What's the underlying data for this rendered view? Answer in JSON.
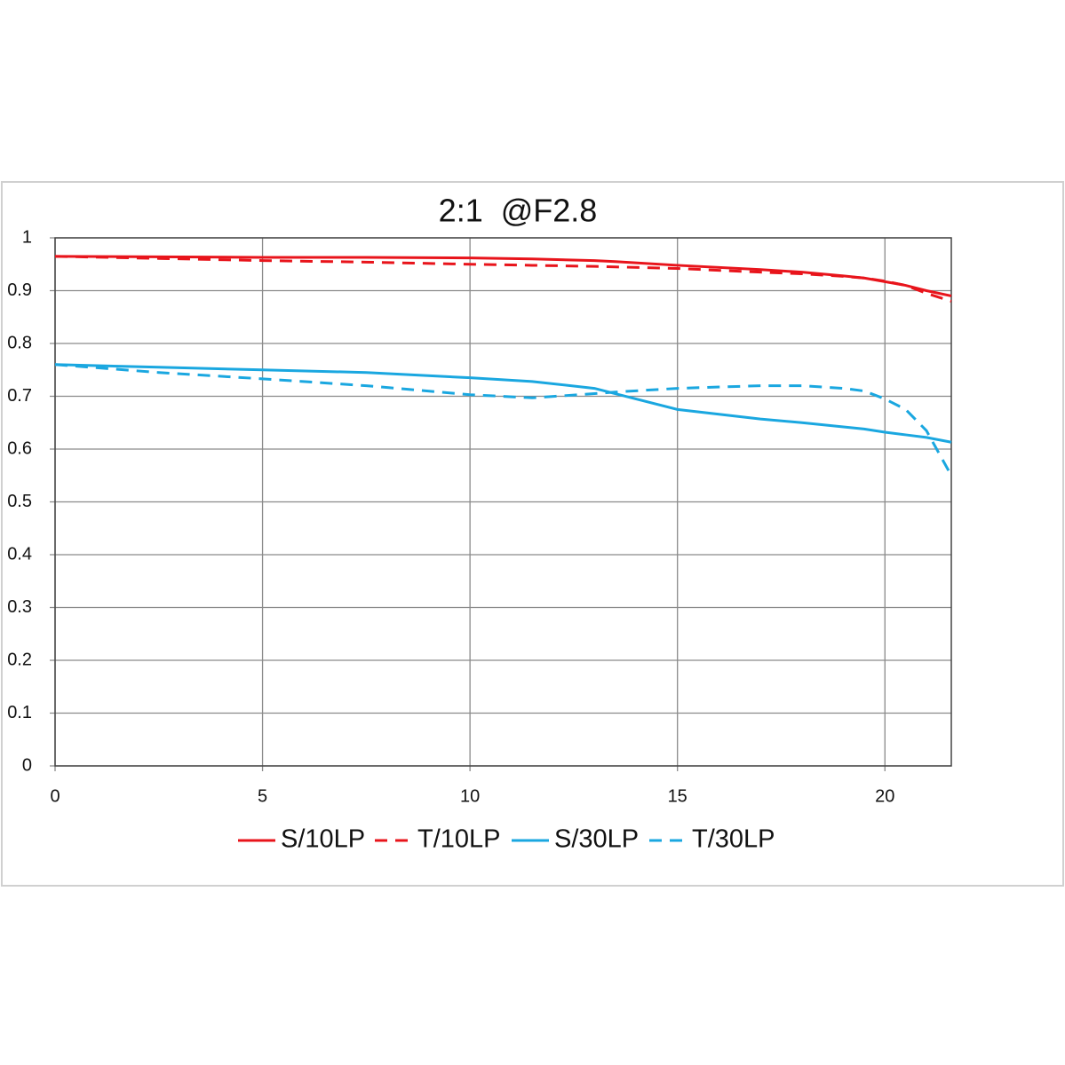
{
  "chart_data": {
    "type": "line",
    "title": "2:1  @F2.8",
    "x": [
      0,
      2.5,
      5,
      7.5,
      10,
      11.5,
      13,
      13.5,
      15,
      17,
      18,
      19,
      19.5,
      20,
      20.5,
      21,
      21.6
    ],
    "series": [
      {
        "name": "S/10LP",
        "color": "#e8141b",
        "dash": false,
        "values": [
          0.965,
          0.964,
          0.963,
          0.963,
          0.962,
          0.96,
          0.957,
          0.955,
          0.948,
          0.94,
          0.935,
          0.928,
          0.924,
          0.917,
          0.91,
          0.9,
          0.89
        ]
      },
      {
        "name": "T/10LP",
        "color": "#e8141b",
        "dash": true,
        "values": [
          0.965,
          0.961,
          0.957,
          0.954,
          0.95,
          0.948,
          0.946,
          0.945,
          0.942,
          0.935,
          0.932,
          0.927,
          0.924,
          0.918,
          0.91,
          0.895,
          0.88
        ]
      },
      {
        "name": "S/30LP",
        "color": "#1aa7e0",
        "dash": false,
        "values": [
          0.76,
          0.755,
          0.75,
          0.745,
          0.735,
          0.728,
          0.715,
          0.705,
          0.675,
          0.657,
          0.65,
          0.642,
          0.638,
          0.632,
          0.627,
          0.622,
          0.613
        ]
      },
      {
        "name": "T/30LP",
        "color": "#1aa7e0",
        "dash": true,
        "values": [
          0.76,
          0.745,
          0.733,
          0.72,
          0.703,
          0.697,
          0.705,
          0.708,
          0.715,
          0.72,
          0.72,
          0.715,
          0.71,
          0.695,
          0.675,
          0.635,
          0.55
        ]
      }
    ],
    "xlim": [
      0,
      21.6
    ],
    "xticks": [
      0,
      5,
      10,
      15,
      20
    ],
    "ylim": [
      0,
      1
    ],
    "yticks": [
      0,
      0.1,
      0.2,
      0.3,
      0.4,
      0.5,
      0.6,
      0.7,
      0.8,
      0.9,
      1
    ],
    "grid": true,
    "legend": "bottom"
  }
}
